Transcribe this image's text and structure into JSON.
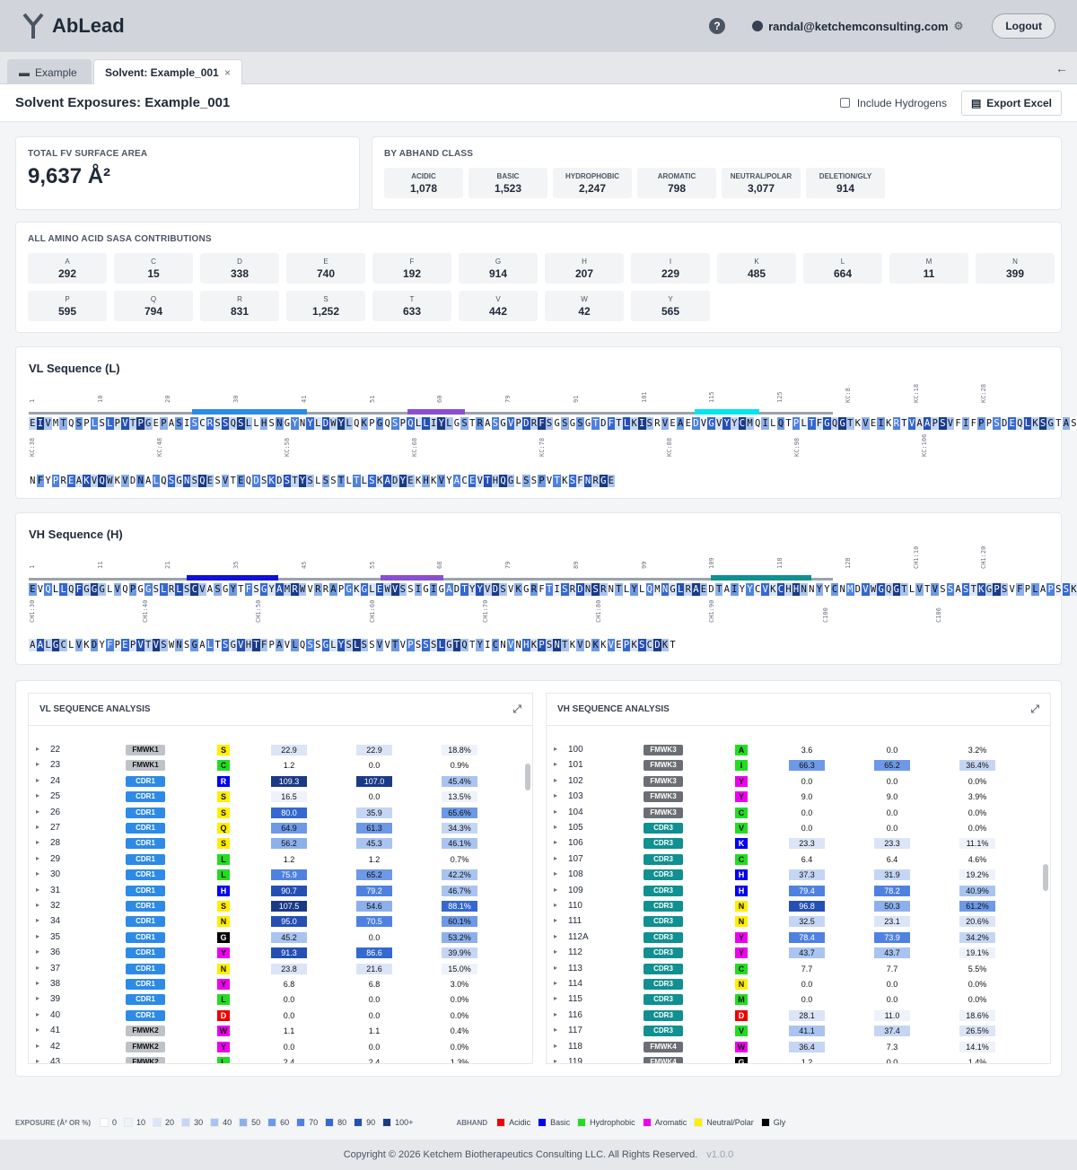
{
  "app": {
    "name": "AbLead",
    "user": "randal@ketchemconsulting.com",
    "logout": "Logout",
    "help": "?"
  },
  "tabs": [
    {
      "label": "Example"
    },
    {
      "label": "Solvent: Example_001",
      "close": "×"
    }
  ],
  "header": {
    "title": "Solvent Exposures: Example_001",
    "include_h": "Include Hydrogens",
    "export": "Export Excel"
  },
  "total": {
    "label": "TOTAL FV SURFACE AREA",
    "value": "9,637 Å²"
  },
  "abhand": {
    "label": "BY ABHAND CLASS",
    "items": [
      {
        "name": "ACIDIC",
        "value": "1,078"
      },
      {
        "name": "BASIC",
        "value": "1,523"
      },
      {
        "name": "HYDROPHOBIC",
        "value": "2,247"
      },
      {
        "name": "AROMATIC",
        "value": "798"
      },
      {
        "name": "NEUTRAL/POLAR",
        "value": "3,077"
      },
      {
        "name": "DELETION/GLY",
        "value": "914"
      }
    ]
  },
  "aa": {
    "label": "ALL AMINO ACID SASA CONTRIBUTIONS",
    "items": [
      {
        "n": "A",
        "v": "292"
      },
      {
        "n": "C",
        "v": "15"
      },
      {
        "n": "D",
        "v": "338"
      },
      {
        "n": "E",
        "v": "740"
      },
      {
        "n": "F",
        "v": "192"
      },
      {
        "n": "G",
        "v": "914"
      },
      {
        "n": "H",
        "v": "207"
      },
      {
        "n": "I",
        "v": "229"
      },
      {
        "n": "K",
        "v": "485"
      },
      {
        "n": "L",
        "v": "664"
      },
      {
        "n": "M",
        "v": "11"
      },
      {
        "n": "N",
        "v": "399"
      },
      {
        "n": "P",
        "v": "595"
      },
      {
        "n": "Q",
        "v": "794"
      },
      {
        "n": "R",
        "v": "831"
      },
      {
        "n": "S",
        "v": "1,252"
      },
      {
        "n": "T",
        "v": "633"
      },
      {
        "n": "V",
        "v": "442"
      },
      {
        "n": "W",
        "v": "42"
      },
      {
        "n": "Y",
        "v": "565"
      }
    ]
  },
  "vl": {
    "title": "VL Sequence (L)",
    "line1": "EIVMTQSPLSLPVTPGEPASISCRSSQSLLHSNGYNYLDWYLQKPGQSPQLLIYLGSTRASGVPDRFSGSGSGTDFTLKISRVEAEDVGVYYCMQILQTPLTFGQGTKVEIKRTVAAPSVFIFPPSDEQLKSGTASVVCLLN",
    "line2": "NFYPREAKVQWKVDNALQSGNSQESVTEQDSKDSTYSLSSTLTLSKADYEKHKVYACEVTHQGLSSPVTKSFNRGE",
    "ticks1": [
      "1",
      "10",
      "20",
      "30",
      "41",
      "51",
      "60",
      "79",
      "91",
      "101",
      "115",
      "125",
      "KC:8",
      "KC:18",
      "KC:28"
    ],
    "ticks2": [
      "KC:38",
      "KC:48",
      "KC:58",
      "KC:68",
      "KC:78",
      "KC:88",
      "KC:98",
      "KC:106"
    ]
  },
  "vh": {
    "title": "VH Sequence (H)",
    "line1": "EVQLLQFGGGLVQPGGSLRLSCVASGYTFSGYAMRWVRRAPGKGLEWVSSIGIGADTYYVDSVKGRFTISRDNSRNTLYLQMNGLRAEDTAIYYCVKCHHNNYYCNMDVWGQGTLVTVSSASTKGPSVFPLAPSSKSTSGGT",
    "line2": "AALGCLVKDYFPEPVTVSWNSGALTSGVHTFPAVLQSSGLYSLSSVVTVPSSSLGTQTYICNVNHKPSNTKVDKKVEPKSCDKT",
    "ticks1": [
      "1",
      "11",
      "21",
      "35",
      "45",
      "55",
      "68",
      "79",
      "89",
      "99",
      "109",
      "118",
      "128",
      "CH1:10",
      "CH1:20"
    ],
    "ticks2": [
      "CH1:30",
      "CH1:40",
      "CH1:50",
      "CH1:60",
      "CH1:70",
      "CH1:80",
      "CH1:90",
      "C100",
      "C106"
    ]
  },
  "vl_analysis": {
    "title": "VL SEQUENCE ANALYSIS",
    "rows": [
      [
        "22",
        "FMWK1",
        "S",
        "22.9",
        "22.9",
        "18.8%"
      ],
      [
        "23",
        "FMWK1",
        "C",
        "1.2",
        "0.0",
        "0.9%"
      ],
      [
        "24",
        "CDR1",
        "R",
        "109.3",
        "107.0",
        "45.4%"
      ],
      [
        "25",
        "CDR1",
        "S",
        "16.5",
        "0.0",
        "13.5%"
      ],
      [
        "26",
        "CDR1",
        "S",
        "80.0",
        "35.9",
        "65.6%"
      ],
      [
        "27",
        "CDR1",
        "Q",
        "64.9",
        "61.3",
        "34.3%"
      ],
      [
        "28",
        "CDR1",
        "S",
        "56.2",
        "45.3",
        "46.1%"
      ],
      [
        "29",
        "CDR1",
        "L",
        "1.2",
        "1.2",
        "0.7%"
      ],
      [
        "30",
        "CDR1",
        "L",
        "75.9",
        "65.2",
        "42.2%"
      ],
      [
        "31",
        "CDR1",
        "H",
        "90.7",
        "79.2",
        "46.7%"
      ],
      [
        "32",
        "CDR1",
        "S",
        "107.5",
        "54.6",
        "88.1%"
      ],
      [
        "34",
        "CDR1",
        "N",
        "95.0",
        "70.5",
        "60.1%"
      ],
      [
        "35",
        "CDR1",
        "G",
        "45.2",
        "0.0",
        "53.2%"
      ],
      [
        "36",
        "CDR1",
        "Y",
        "91.3",
        "86.6",
        "39.9%"
      ],
      [
        "37",
        "CDR1",
        "N",
        "23.8",
        "21.6",
        "15.0%"
      ],
      [
        "38",
        "CDR1",
        "Y",
        "6.8",
        "6.8",
        "3.0%"
      ],
      [
        "39",
        "CDR1",
        "L",
        "0.0",
        "0.0",
        "0.0%"
      ],
      [
        "40",
        "CDR1",
        "D",
        "0.0",
        "0.0",
        "0.0%"
      ],
      [
        "41",
        "FMWK2",
        "W",
        "1.1",
        "1.1",
        "0.4%"
      ],
      [
        "42",
        "FMWK2",
        "Y",
        "0.0",
        "0.0",
        "0.0%"
      ],
      [
        "43",
        "FMWK2",
        "L",
        "2.4",
        "2.4",
        "1.3%"
      ]
    ]
  },
  "vh_analysis": {
    "title": "VH SEQUENCE ANALYSIS",
    "rows": [
      [
        "100",
        "FMWK3",
        "A",
        "3.6",
        "0.0",
        "3.2%"
      ],
      [
        "101",
        "FMWK3",
        "I",
        "66.3",
        "65.2",
        "36.4%"
      ],
      [
        "102",
        "FMWK3",
        "Y",
        "0.0",
        "0.0",
        "0.0%"
      ],
      [
        "103",
        "FMWK3",
        "Y",
        "9.0",
        "9.0",
        "3.9%"
      ],
      [
        "104",
        "FMWK3",
        "C",
        "0.0",
        "0.0",
        "0.0%"
      ],
      [
        "105",
        "CDR3",
        "V",
        "0.0",
        "0.0",
        "0.0%"
      ],
      [
        "106",
        "CDR3",
        "K",
        "23.3",
        "23.3",
        "11.1%"
      ],
      [
        "107",
        "CDR3",
        "C",
        "6.4",
        "6.4",
        "4.6%"
      ],
      [
        "108",
        "CDR3",
        "H",
        "37.3",
        "31.9",
        "19.2%"
      ],
      [
        "109",
        "CDR3",
        "H",
        "79.4",
        "78.2",
        "40.9%"
      ],
      [
        "110",
        "CDR3",
        "N",
        "96.8",
        "50.3",
        "61.2%"
      ],
      [
        "111",
        "CDR3",
        "N",
        "32.5",
        "23.1",
        "20.6%"
      ],
      [
        "112A",
        "CDR3",
        "Y",
        "78.4",
        "73.9",
        "34.2%"
      ],
      [
        "112",
        "CDR3",
        "Y",
        "43.7",
        "43.7",
        "19.1%"
      ],
      [
        "113",
        "CDR3",
        "C",
        "7.7",
        "7.7",
        "5.5%"
      ],
      [
        "114",
        "CDR3",
        "N",
        "0.0",
        "0.0",
        "0.0%"
      ],
      [
        "115",
        "CDR3",
        "M",
        "0.0",
        "0.0",
        "0.0%"
      ],
      [
        "116",
        "CDR3",
        "D",
        "28.1",
        "11.0",
        "18.6%"
      ],
      [
        "117",
        "CDR3",
        "V",
        "41.1",
        "37.4",
        "26.5%"
      ],
      [
        "118",
        "FMWK4",
        "W",
        "36.4",
        "7.3",
        "14.1%"
      ],
      [
        "119",
        "FMWK4",
        "G",
        "1.2",
        "0.0",
        "1.4%"
      ]
    ]
  },
  "legend": {
    "exposure_title": "EXPOSURE (Å² OR %)",
    "levels": [
      "0",
      "10",
      "20",
      "30",
      "40",
      "50",
      "60",
      "70",
      "80",
      "90",
      "100+"
    ],
    "abhand_title": "ABHAND",
    "classes": [
      "Acidic",
      "Basic",
      "Hydrophobic",
      "Aromatic",
      "Neutral/Polar",
      "Gly"
    ]
  },
  "colors": {
    "acidic": "#ef0000",
    "basic": "#0000ee",
    "hydrophobic": "#22dd22",
    "aromatic": "#ee00ee",
    "polar": "#ffee00",
    "gly": "#000000"
  },
  "footer": {
    "copyright": "Copyright © 2026 Ketchem Biotherapeutics Consulting LLC. All Rights Reserved.",
    "version": "v1.0.0"
  }
}
